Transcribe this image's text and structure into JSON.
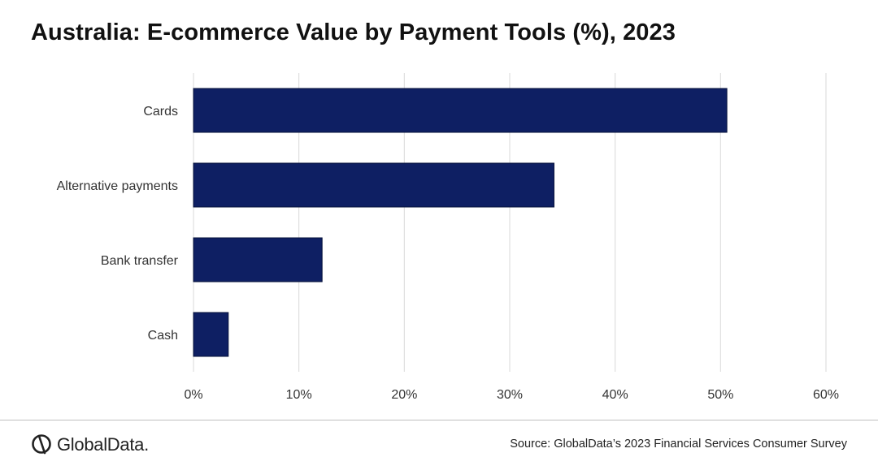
{
  "title": "Australia: E-commerce Value by Payment Tools (%), 2023",
  "source": "Source: GlobalData’s 2023 Financial Services Consumer Survey",
  "logo_text": "GlobalData.",
  "colors": {
    "bar": "#0e1f63",
    "grid": "#d9d9d9"
  },
  "chart_data": {
    "type": "bar",
    "orientation": "horizontal",
    "title": "Australia: E-commerce Value by Payment Tools (%), 2023",
    "xlabel": "",
    "ylabel": "",
    "categories": [
      "Cards",
      "Alternative payments",
      "Bank transfer",
      "Cash"
    ],
    "values": [
      50.6,
      34.2,
      12.2,
      3.3
    ],
    "xlim": [
      0,
      60
    ],
    "ticks": [
      0,
      10,
      20,
      30,
      40,
      50,
      60
    ],
    "tick_labels": [
      "0%",
      "10%",
      "20%",
      "30%",
      "40%",
      "50%",
      "60%"
    ],
    "grid": true
  }
}
